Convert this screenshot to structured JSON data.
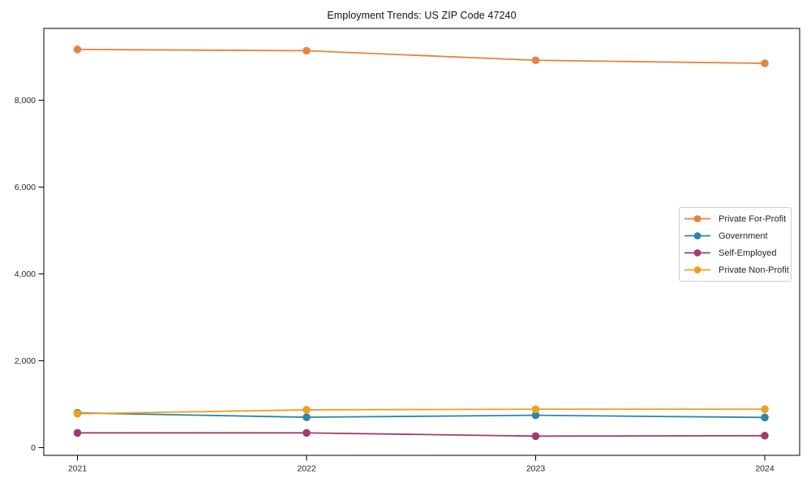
{
  "title": "Employment Trends: US ZIP Code 47240",
  "chart_data": {
    "type": "line",
    "categories": [
      "2021",
      "2022",
      "2023",
      "2024"
    ],
    "series": [
      {
        "name": "Private For-Profit",
        "color": "#E8823E",
        "values": [
          9170,
          9140,
          8920,
          8850
        ]
      },
      {
        "name": "Government",
        "color": "#2E86A8",
        "values": [
          800,
          700,
          745,
          695
        ]
      },
      {
        "name": "Self-Employed",
        "color": "#A23B72",
        "values": [
          340,
          340,
          265,
          275
        ]
      },
      {
        "name": "Private Non-Profit",
        "color": "#F0A01E",
        "values": [
          780,
          870,
          885,
          885
        ]
      }
    ],
    "yticks": [
      0,
      2000,
      4000,
      6000,
      8000
    ],
    "ytick_labels": [
      "0",
      "2,000",
      "4,000",
      "6,000",
      "8,000"
    ],
    "ylim": [
      0,
      9650
    ],
    "xlabel": "",
    "ylabel": "",
    "grid": false,
    "marker": "circle",
    "legend_position": "center right",
    "axis_color": "#000000",
    "tick_label_color": "#262626"
  }
}
